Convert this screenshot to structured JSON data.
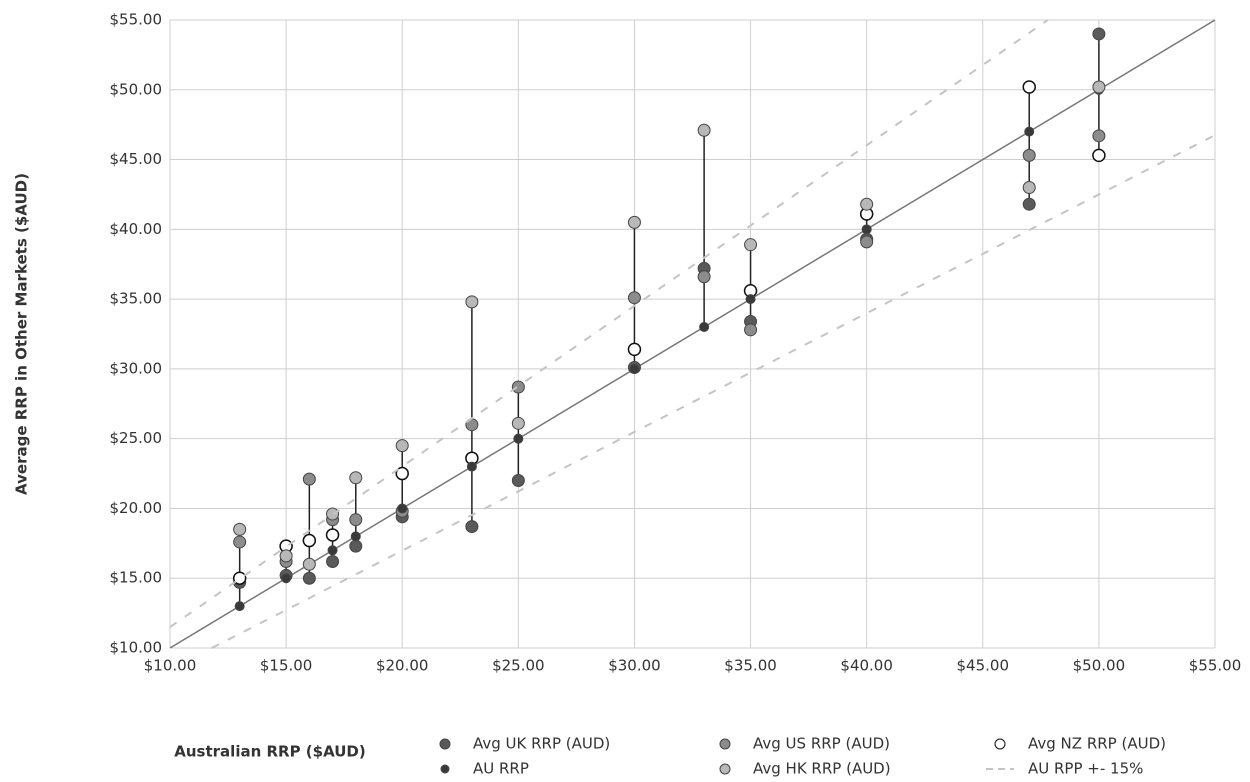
{
  "chart_data": {
    "type": "scatter",
    "x_label": "Australian RRP ($AUD)",
    "y_label": "Average RRP in Other Markets ($AUD)",
    "x": [
      13,
      15,
      16,
      17,
      18,
      20,
      23,
      25,
      30,
      33,
      35,
      40,
      47,
      50
    ],
    "series": [
      {
        "name": "Avg UK RRP (AUD)",
        "color": "#5a5a5a",
        "values": [
          14.7,
          15.2,
          15.0,
          16.2,
          17.3,
          19.4,
          18.7,
          22.0,
          30.1,
          37.2,
          33.4,
          39.3,
          41.8,
          54.0
        ]
      },
      {
        "name": "Avg US RRP (AUD)",
        "color": "#8c8c8c",
        "values": [
          17.6,
          16.2,
          22.1,
          19.2,
          19.2,
          19.8,
          26.0,
          28.7,
          35.1,
          36.6,
          32.8,
          39.1,
          45.3,
          46.7
        ]
      },
      {
        "name": "Avg NZ RRP (AUD)",
        "color": "#ffffff",
        "values": [
          15.0,
          17.3,
          17.7,
          18.1,
          null,
          22.5,
          23.6,
          null,
          31.4,
          null,
          35.6,
          41.1,
          50.2,
          45.3
        ]
      },
      {
        "name": "AU RRP",
        "color": "#3a3a3a",
        "values": [
          13,
          15,
          16,
          17,
          18,
          20,
          23,
          25,
          30,
          33,
          35,
          40,
          47,
          50
        ]
      },
      {
        "name": "Avg HK RRP (AUD)",
        "color": "#b8b8b8",
        "values": [
          18.5,
          16.6,
          16.0,
          19.6,
          22.2,
          24.5,
          34.8,
          26.1,
          40.5,
          47.1,
          38.9,
          41.8,
          43.0,
          50.2
        ]
      },
      {
        "name": "AU RPP +- 15%",
        "color": "#c4c4c4",
        "line": true,
        "x": [
          10,
          47.8,
          11.8,
          55
        ],
        "values": [
          11.5,
          55,
          10,
          46.75
        ],
        "breaks_after": 1
      }
    ],
    "xlim": [
      10,
      55
    ],
    "ylim": [
      10,
      55
    ],
    "xticks": [
      {
        "value": 10,
        "label": "$10.00"
      },
      {
        "value": 15,
        "label": "$15.00"
      },
      {
        "value": 20,
        "label": "$20.00"
      },
      {
        "value": 25,
        "label": "$25.00"
      },
      {
        "value": 30,
        "label": "$30.00"
      },
      {
        "value": 35,
        "label": "$35.00"
      },
      {
        "value": 40,
        "label": "$40.00"
      },
      {
        "value": 45,
        "label": "$45.00"
      },
      {
        "value": 50,
        "label": "$50.00"
      },
      {
        "value": 55,
        "label": "$55.00"
      }
    ],
    "yticks": [
      {
        "value": 10,
        "label": "$10.00"
      },
      {
        "value": 15,
        "label": "$15.00"
      },
      {
        "value": 20,
        "label": "$20.00"
      },
      {
        "value": 25,
        "label": "$25.00"
      },
      {
        "value": 30,
        "label": "$30.00"
      },
      {
        "value": 35,
        "label": "$35.00"
      },
      {
        "value": 40,
        "label": "$40.00"
      },
      {
        "value": 45,
        "label": "$45.00"
      },
      {
        "value": 50,
        "label": "$50.00"
      },
      {
        "value": 55,
        "label": "$55.00"
      }
    ],
    "grid": true
  }
}
